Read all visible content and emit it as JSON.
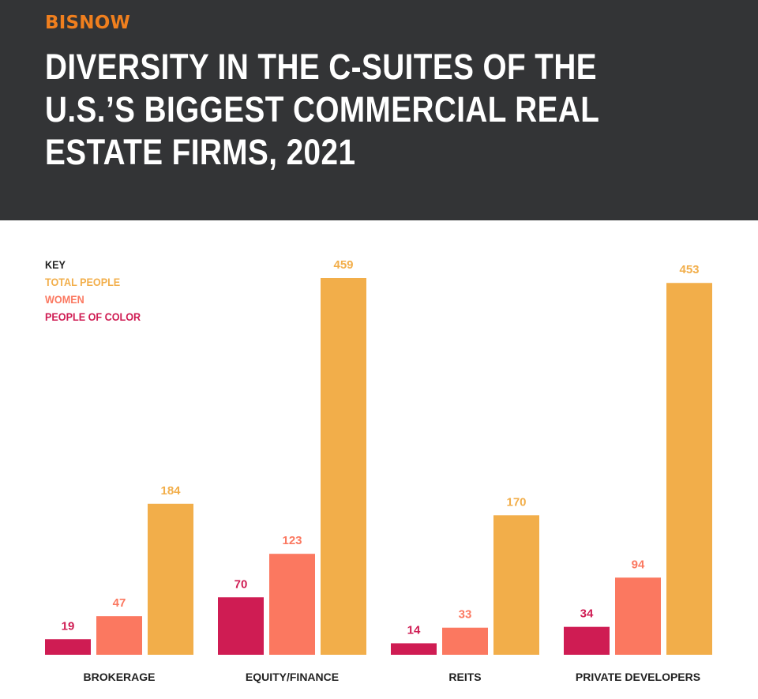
{
  "header": {
    "brand": "BISNOW",
    "title": "DIVERSITY IN THE C-SUITES OF THE U.S.’S BIGGEST COMMERCIAL REAL ESTATE FIRMS, 2021"
  },
  "legend": {
    "title": "KEY",
    "items": [
      {
        "label": "TOTAL PEOPLE",
        "color": "#f2ae4a"
      },
      {
        "label": "WOMEN",
        "color": "#fb7860"
      },
      {
        "label": "PEOPLE OF COLOR",
        "color": "#cf1c53"
      }
    ]
  },
  "chart_data": {
    "type": "bar",
    "title": "DIVERSITY IN THE C-SUITES OF THE U.S.’S BIGGEST COMMERCIAL REAL ESTATE FIRMS, 2021",
    "categories": [
      "BROKERAGE",
      "EQUITY/FINANCE",
      "REITS",
      "PRIVATE DEVELOPERS"
    ],
    "series": [
      {
        "name": "PEOPLE OF COLOR",
        "values": [
          19,
          70,
          14,
          34
        ],
        "color": "#cf1c53"
      },
      {
        "name": "WOMEN",
        "values": [
          47,
          123,
          33,
          94
        ],
        "color": "#fb7860"
      },
      {
        "name": "TOTAL PEOPLE",
        "values": [
          184,
          459,
          170,
          453
        ],
        "color": "#f2ae4a"
      }
    ],
    "ylim": [
      0,
      459
    ],
    "grid": false,
    "legend_position": "top-left",
    "data_labels": true
  }
}
